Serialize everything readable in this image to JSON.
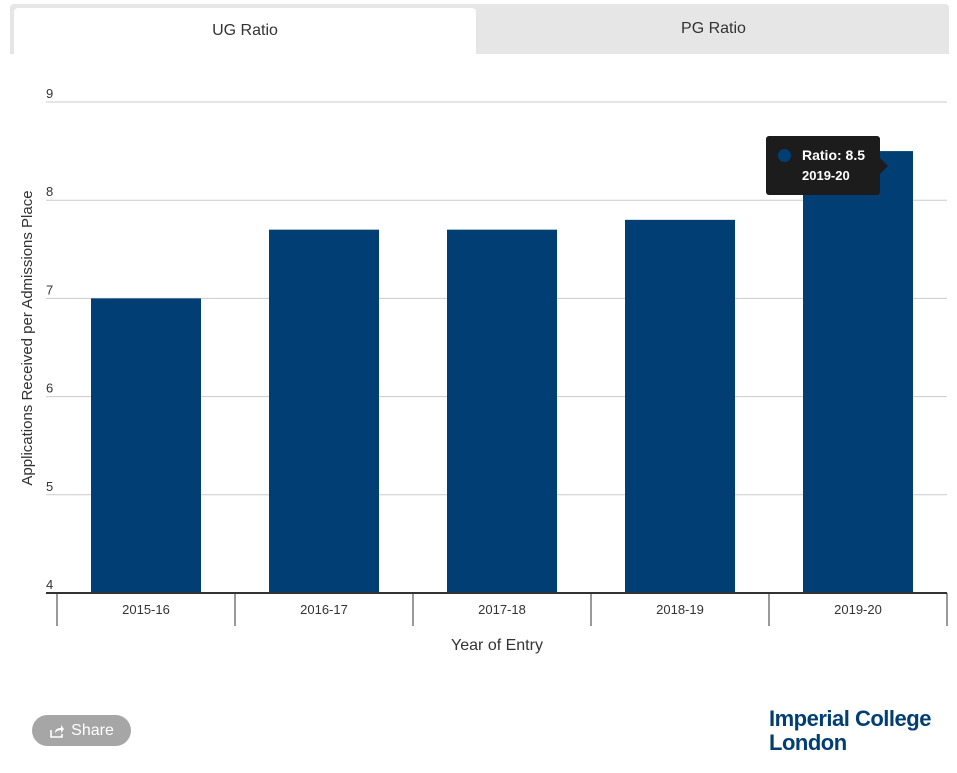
{
  "tabs": [
    {
      "label": "UG Ratio",
      "active": true
    },
    {
      "label": "PG Ratio",
      "active": false
    }
  ],
  "chart_data": {
    "type": "bar",
    "categories": [
      "2015-16",
      "2016-17",
      "2017-18",
      "2018-19",
      "2019-20"
    ],
    "values": [
      7.0,
      7.7,
      7.7,
      7.8,
      8.5
    ],
    "xlabel": "Year of Entry",
    "ylabel": "Applications Received per Admissions Place",
    "ylim": [
      4,
      9
    ],
    "yticks": [
      4,
      5,
      6,
      7,
      8,
      9
    ],
    "grid": true,
    "bar_color": "#003e74"
  },
  "tooltip": {
    "value_text": "Ratio: 8.5",
    "category_text": "2019-20"
  },
  "share": {
    "label": "Share",
    "icon": "share-icon"
  },
  "logo": {
    "line1": "Imperial College",
    "line2": "London",
    "color": "#003e74"
  }
}
